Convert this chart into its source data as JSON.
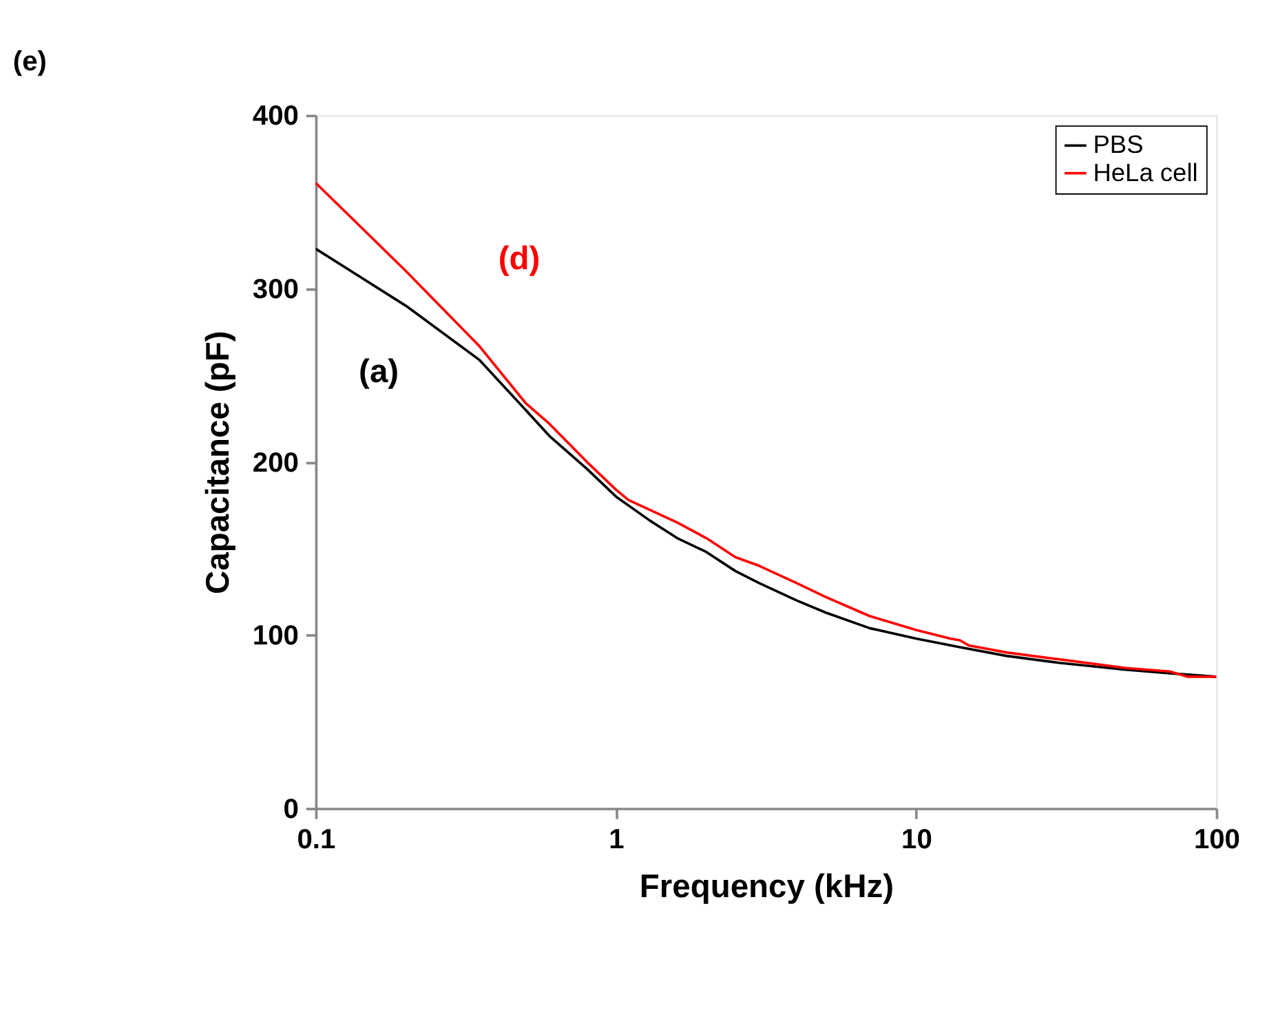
{
  "chart_data": {
    "type": "line",
    "xlabel": "Frequency (kHz)",
    "ylabel": "Capacitance (pF)",
    "log": "x",
    "xlim": [
      0.1,
      100
    ],
    "xticks": [
      0.1,
      1,
      10,
      100
    ],
    "ylim": [
      0,
      400
    ],
    "yticks": [
      0,
      100,
      200,
      300,
      400
    ],
    "grid": false,
    "legend": "top right",
    "line_style": "solid",
    "marker": "none",
    "annotations": [
      "(e)",
      "(a)",
      "(d)"
    ],
    "series": [
      {
        "name": "PBS",
        "color": "#000000",
        "x": [
          0.1,
          0.2,
          0.35,
          0.5,
          0.6,
          0.8,
          1,
          1.3,
          1.6,
          2,
          2.5,
          3,
          4,
          5,
          7,
          10,
          14,
          20,
          30,
          50,
          70,
          100
        ],
        "values": [
          323,
          290,
          259,
          230,
          215,
          196,
          180,
          166,
          156,
          148,
          137,
          130,
          120,
          113,
          104,
          98,
          93,
          88,
          84,
          80,
          78,
          76
        ]
      },
      {
        "name": "HeLa cell",
        "color": "#ff0000",
        "x": [
          0.1,
          0.2,
          0.35,
          0.5,
          0.6,
          0.8,
          1,
          1.1,
          1.6,
          2,
          2.5,
          3,
          4,
          5,
          7,
          10,
          13,
          14,
          15,
          20,
          30,
          50,
          70,
          80,
          100
        ],
        "values": [
          361,
          310,
          267,
          234,
          222,
          200,
          184,
          178,
          165,
          156,
          145,
          140,
          130,
          122,
          111,
          103,
          98,
          97,
          94,
          90,
          86,
          81,
          79,
          76,
          76
        ]
      }
    ]
  }
}
